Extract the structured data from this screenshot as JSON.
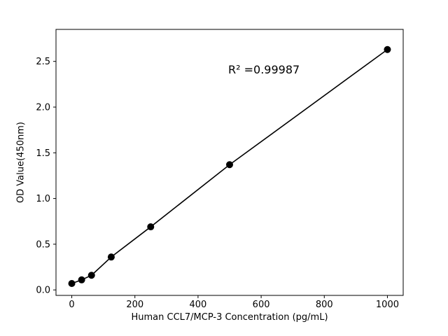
{
  "figure": {
    "background": "#ffffff"
  },
  "chart_data": {
    "type": "scatter",
    "title": "",
    "xlabel": "Human CCL7/MCP-3 Concentration (pg/mL)",
    "ylabel": "OD Value(450nm)",
    "annotation": "R² =0.99987",
    "x": [
      0,
      31.25,
      62.5,
      125,
      250,
      500,
      1000
    ],
    "y": [
      0.07,
      0.11,
      0.16,
      0.36,
      0.69,
      1.37,
      2.63
    ],
    "xlim": [
      -50,
      1050
    ],
    "ylim": [
      -0.06,
      2.85
    ],
    "xticks": [
      0,
      200,
      400,
      600,
      800,
      1000
    ],
    "xtick_labels": [
      "0",
      "200",
      "400",
      "600",
      "800",
      "1000"
    ],
    "yticks": [
      0.0,
      0.5,
      1.0,
      1.5,
      2.0,
      2.5
    ],
    "ytick_labels": [
      "0.0",
      "0.5",
      "1.0",
      "1.5",
      "2.0",
      "2.5"
    ],
    "line": true,
    "grid": false,
    "legend_position": "none",
    "line_color": "#000000",
    "marker_color": "#000000",
    "axis_color": "#000000"
  }
}
